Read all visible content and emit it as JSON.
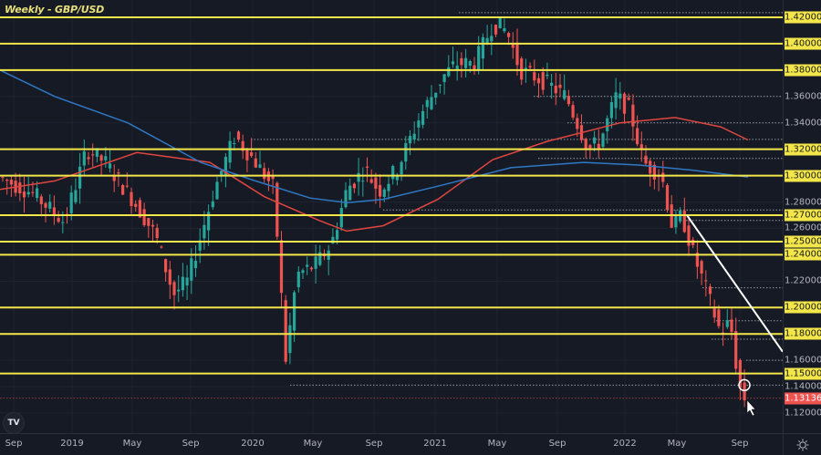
{
  "header": {
    "title": "Weekly - GBP/USD"
  },
  "price_axis": {
    "labels": [
      {
        "value": "1.42000",
        "price": 1.42,
        "type": "key"
      },
      {
        "value": "1.40000",
        "price": 1.4,
        "type": "key"
      },
      {
        "value": "1.38000",
        "price": 1.38,
        "type": "key"
      },
      {
        "value": "1.36000",
        "price": 1.36,
        "type": "plain"
      },
      {
        "value": "1.34000",
        "price": 1.34,
        "type": "plain"
      },
      {
        "value": "1.32000",
        "price": 1.32,
        "type": "key"
      },
      {
        "value": "1.30000",
        "price": 1.3,
        "type": "key"
      },
      {
        "value": "1.28000",
        "price": 1.28,
        "type": "plain"
      },
      {
        "value": "1.27000",
        "price": 1.27,
        "type": "key"
      },
      {
        "value": "1.26000",
        "price": 1.26,
        "type": "plain"
      },
      {
        "value": "1.25000",
        "price": 1.25,
        "type": "key"
      },
      {
        "value": "1.24000",
        "price": 1.24,
        "type": "key"
      },
      {
        "value": "1.22000",
        "price": 1.22,
        "type": "plain"
      },
      {
        "value": "1.20000",
        "price": 1.2,
        "type": "key"
      },
      {
        "value": "1.18000",
        "price": 1.18,
        "type": "key"
      },
      {
        "value": "1.16000",
        "price": 1.16,
        "type": "plain"
      },
      {
        "value": "1.15000",
        "price": 1.15,
        "type": "key"
      },
      {
        "value": "1.14000",
        "price": 1.14,
        "type": "plain"
      },
      {
        "value": "1.13136",
        "price": 1.13136,
        "type": "last"
      },
      {
        "value": "1.12000",
        "price": 1.12,
        "type": "plain"
      }
    ]
  },
  "time_axis": {
    "labels": [
      {
        "text": "Sep",
        "x": 15
      },
      {
        "text": "2019",
        "x": 79
      },
      {
        "text": "May",
        "x": 145
      },
      {
        "text": "Sep",
        "x": 209
      },
      {
        "text": "2020",
        "x": 277
      },
      {
        "text": "May",
        "x": 343
      },
      {
        "text": "Sep",
        "x": 410
      },
      {
        "text": "2021",
        "x": 477
      },
      {
        "text": "May",
        "x": 545
      },
      {
        "text": "Sep",
        "x": 611
      },
      {
        "text": "2022",
        "x": 685
      },
      {
        "text": "May",
        "x": 742
      },
      {
        "text": "Sep",
        "x": 811
      }
    ]
  },
  "colors": {
    "background": "#161a25",
    "key_level": "#f2e64a",
    "bull_candle": "#26a69a",
    "bear_candle": "#ef5350",
    "ma_fast": "#e0463f",
    "ma_slow": "#2f78c6",
    "trendline": "#ffffff",
    "last_price": "#ef5350"
  },
  "chart_data": {
    "type": "candlestick",
    "title": "Weekly - GBP/USD",
    "symbol": "GBP/USD",
    "timeframe": "Weekly",
    "x_range": [
      "2018-09",
      "2022-09"
    ],
    "x_ticks": [
      "Sep",
      "2019",
      "May",
      "Sep",
      "2020",
      "May",
      "Sep",
      "2021",
      "May",
      "Sep",
      "2022",
      "May",
      "Sep"
    ],
    "y_range": [
      1.11,
      1.43
    ],
    "y_ticks": [
      1.12,
      1.14,
      1.15,
      1.16,
      1.18,
      1.2,
      1.22,
      1.24,
      1.25,
      1.26,
      1.27,
      1.28,
      1.3,
      1.32,
      1.34,
      1.36,
      1.38,
      1.4,
      1.42
    ],
    "last_price": 1.13136,
    "horizontal_key_levels": [
      1.42,
      1.4,
      1.38,
      1.32,
      1.3,
      1.27,
      1.25,
      1.24,
      1.2,
      1.18,
      1.15
    ],
    "dotted_levels": [
      1.4235,
      1.36,
      1.34,
      1.3275,
      1.313,
      1.274,
      1.266,
      1.215,
      1.19,
      1.176,
      1.16,
      1.1412
    ],
    "moving_averages": [
      {
        "name": "MA fast (red)",
        "color": "#e0463f",
        "points": [
          [
            0,
            1.2895
          ],
          [
            60,
            1.296
          ],
          [
            150,
            1.3175
          ],
          [
            230,
            1.31
          ],
          [
            290,
            1.284
          ],
          [
            350,
            1.266
          ],
          [
            380,
            1.258
          ],
          [
            420,
            1.262
          ],
          [
            480,
            1.282
          ],
          [
            540,
            1.312
          ],
          [
            600,
            1.326
          ],
          [
            680,
            1.34
          ],
          [
            740,
            1.344
          ],
          [
            790,
            1.337
          ],
          [
            820,
            1.327
          ]
        ]
      },
      {
        "name": "MA slow (blue)",
        "color": "#2f78c6",
        "points": [
          [
            0,
            1.38
          ],
          [
            60,
            1.36
          ],
          [
            140,
            1.34
          ],
          [
            220,
            1.31
          ],
          [
            280,
            1.296
          ],
          [
            340,
            1.283
          ],
          [
            380,
            1.2795
          ],
          [
            420,
            1.282
          ],
          [
            480,
            1.292
          ],
          [
            560,
            1.306
          ],
          [
            640,
            1.31
          ],
          [
            700,
            1.308
          ],
          [
            760,
            1.304
          ],
          [
            820,
            1.299
          ]
        ]
      }
    ],
    "trendline": {
      "from": [
        753,
        1.27
      ],
      "to": [
        858,
        1.1665
      ]
    },
    "annotations": [
      "circle marker near 1.1400 at latest candle",
      "cursor arrow below last candle"
    ],
    "approx_path": [
      [
        "2018-09",
        1.3
      ],
      [
        "2018-12",
        1.27
      ],
      [
        "2019-03",
        1.32
      ],
      [
        "2019-05",
        1.27
      ],
      [
        "2019-08",
        1.21
      ],
      [
        "2019-12",
        1.32
      ],
      [
        "2020-03",
        1.15
      ],
      [
        "2020-06",
        1.24
      ],
      [
        "2020-09",
        1.28
      ],
      [
        "2021-01",
        1.37
      ],
      [
        "2021-05",
        1.42
      ],
      [
        "2021-09",
        1.37
      ],
      [
        "2021-12",
        1.32
      ],
      [
        "2022-02",
        1.36
      ],
      [
        "2022-05",
        1.24
      ],
      [
        "2022-08",
        1.18
      ],
      [
        "2022-09",
        1.13136
      ]
    ]
  }
}
